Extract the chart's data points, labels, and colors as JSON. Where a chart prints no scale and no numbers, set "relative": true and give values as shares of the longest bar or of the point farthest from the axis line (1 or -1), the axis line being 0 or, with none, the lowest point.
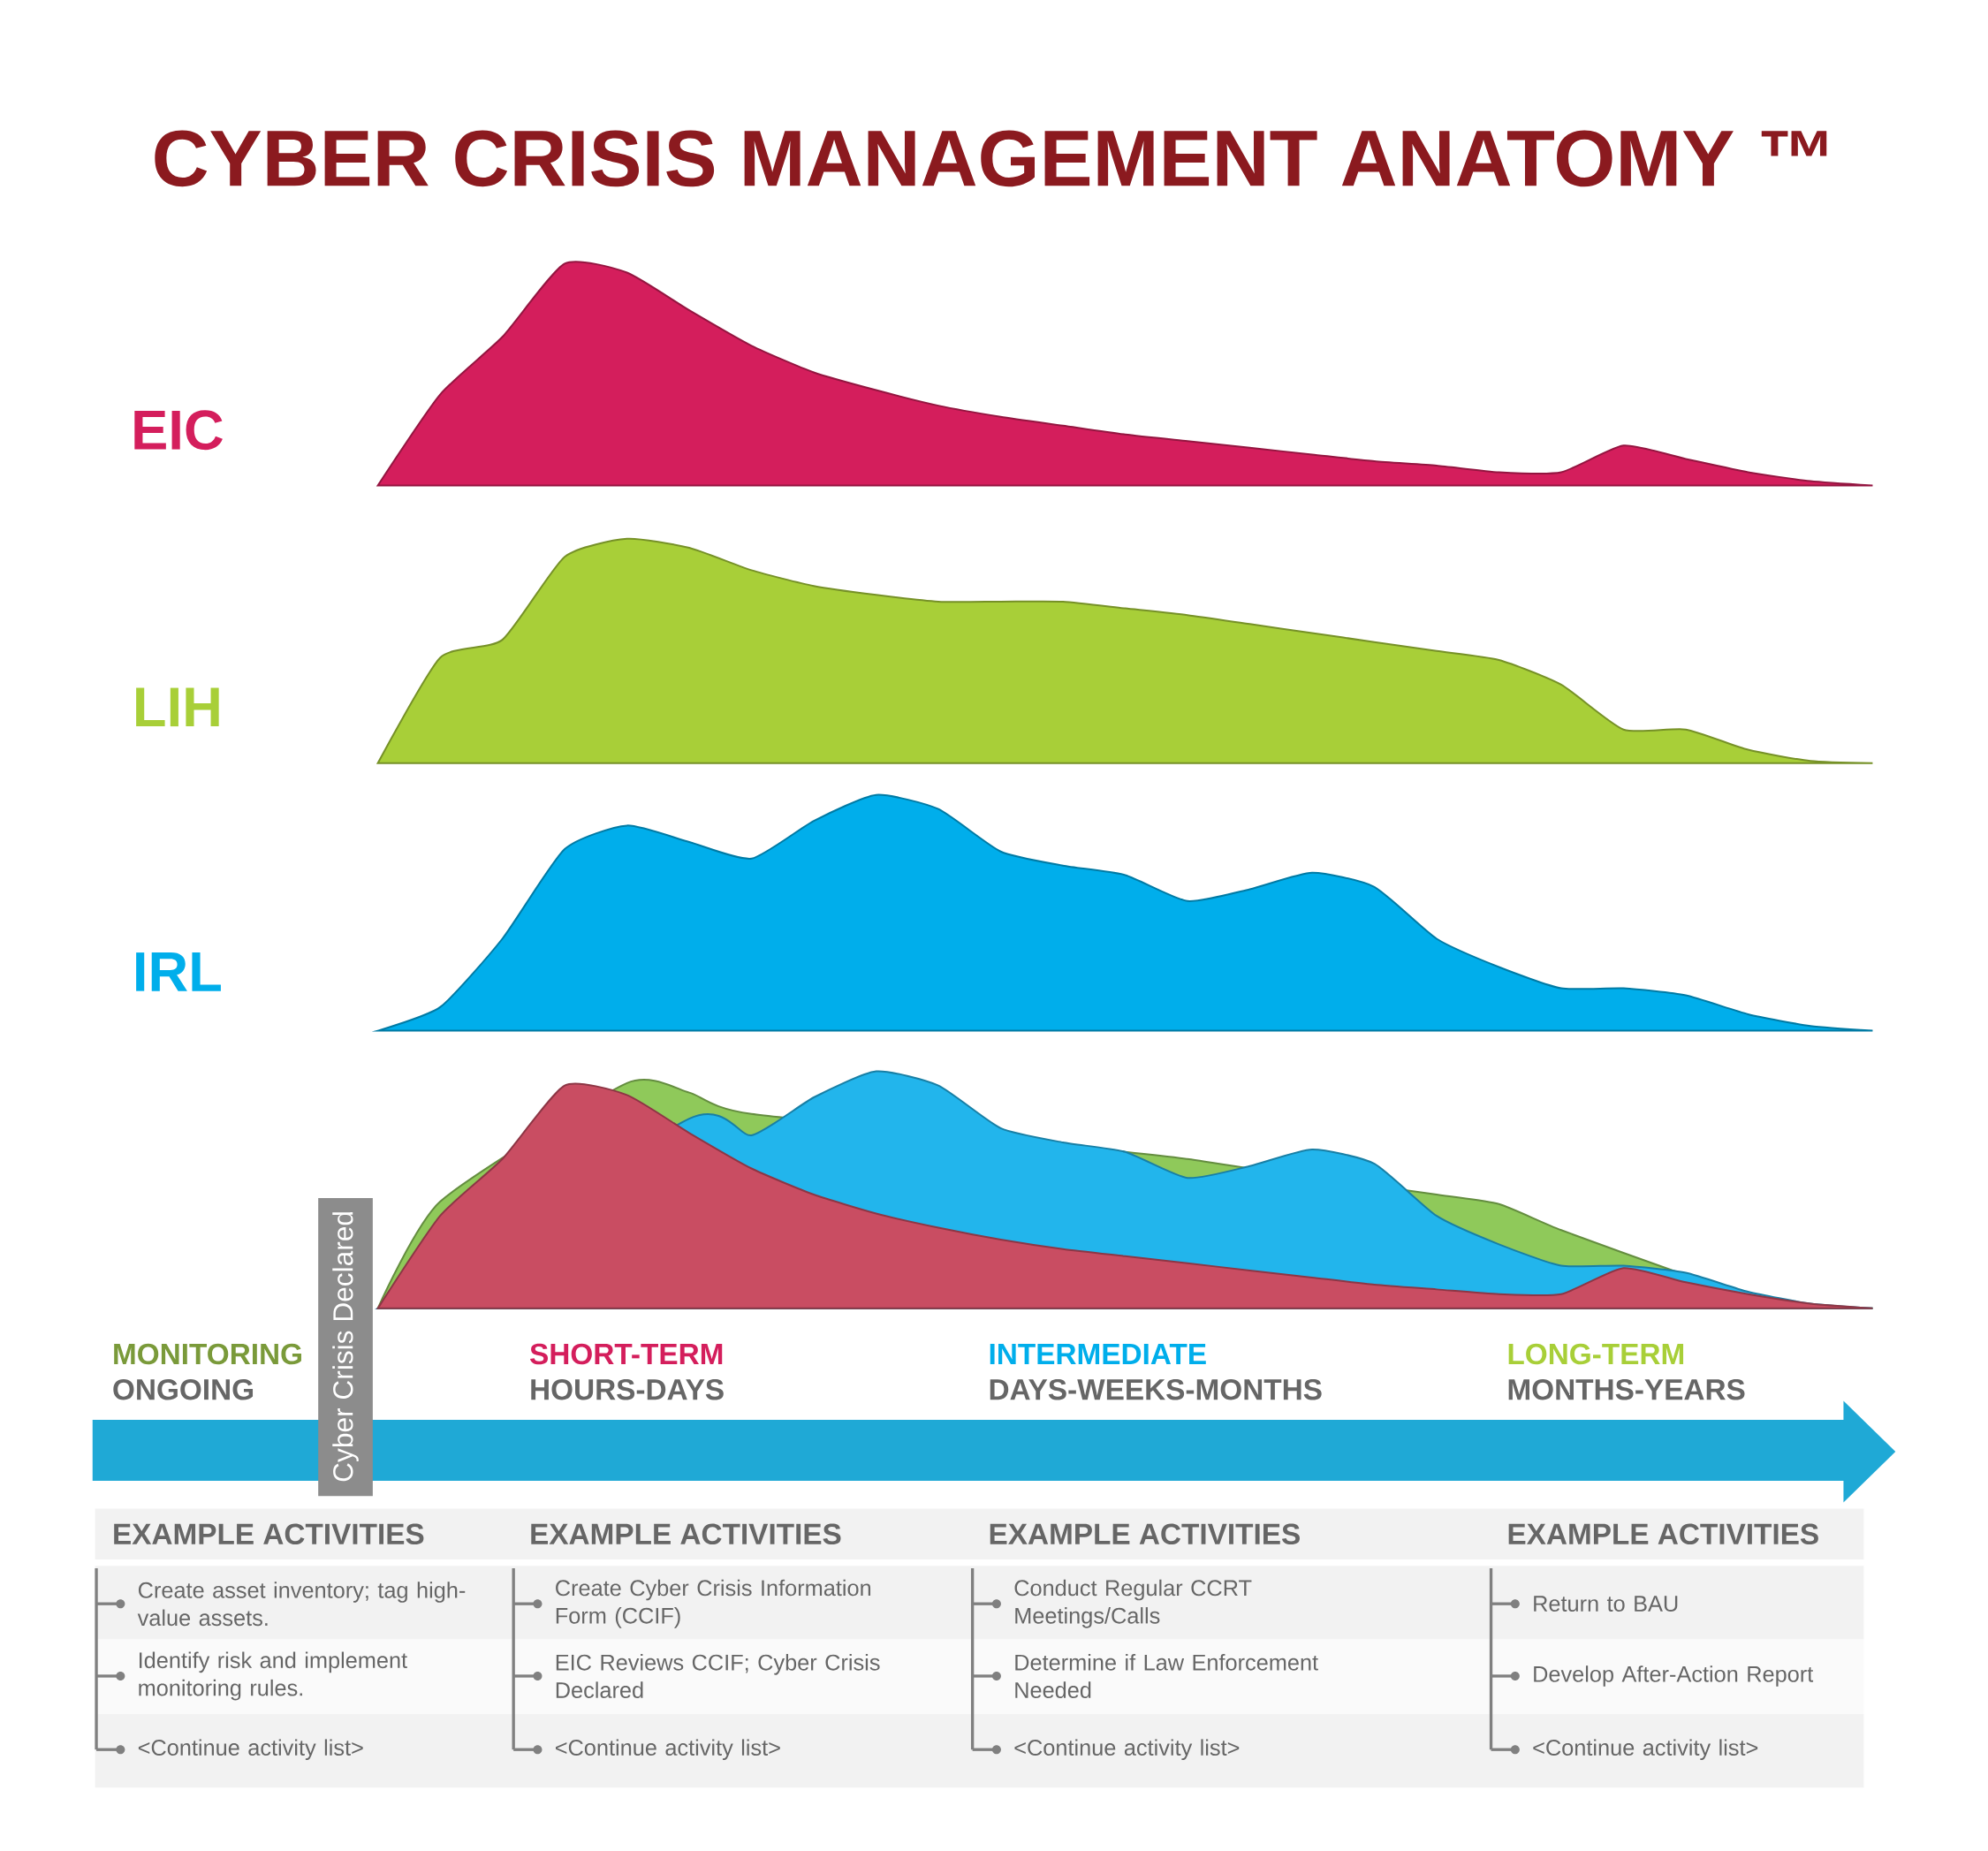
{
  "chart_data": [
    {
      "type": "area",
      "relative": true,
      "title": "CYBER CRISIS MANAGEMENT ANATOMY ™",
      "categories": [
        null,
        null,
        null,
        null,
        null,
        null,
        null,
        null,
        null,
        null,
        null,
        null,
        null,
        null,
        null,
        null,
        null,
        null,
        null,
        null,
        null,
        null,
        null,
        null,
        null
      ],
      "series": [
        {
          "name": "EIC",
          "color": "#d41e5c",
          "values": [
            0,
            0.41,
            0.67,
            1,
            0.96,
            0.79,
            0.63,
            0.51,
            0.43,
            0.36,
            0.31,
            0.27,
            0.23,
            0.2,
            0.17,
            0.14,
            0.11,
            0.09,
            0.06,
            0.06,
            0.18,
            0.12,
            0.06,
            0.02,
            0
          ]
        }
      ]
    },
    {
      "type": "area",
      "relative": true,
      "categories": [
        null,
        null,
        null,
        null,
        null,
        null,
        null,
        null,
        null,
        null,
        null,
        null,
        null,
        null,
        null,
        null,
        null,
        null,
        null,
        null,
        null,
        null,
        null,
        null,
        null
      ],
      "series": [
        {
          "name": "LIH",
          "color": "#a8cf38",
          "values": [
            0,
            0.47,
            0.55,
            0.92,
            1,
            0.96,
            0.86,
            0.79,
            0.75,
            0.72,
            0.72,
            0.72,
            0.69,
            0.66,
            0.62,
            0.58,
            0.54,
            0.5,
            0.46,
            0.35,
            0.15,
            0.15,
            0.06,
            0.01,
            0
          ]
        }
      ]
    },
    {
      "type": "area",
      "relative": true,
      "categories": [
        null,
        null,
        null,
        null,
        null,
        null,
        null,
        null,
        null,
        null,
        null,
        null,
        null,
        null,
        null,
        null,
        null,
        null,
        null,
        null,
        null,
        null,
        null,
        null,
        null
      ],
      "series": [
        {
          "name": "IRL",
          "color": "#00aeeb",
          "values": [
            0,
            0.1,
            0.39,
            0.77,
            0.87,
            0.8,
            0.73,
            0.89,
            1,
            0.94,
            0.76,
            0.7,
            0.66,
            0.55,
            0.6,
            0.67,
            0.61,
            0.39,
            0.27,
            0.18,
            0.18,
            0.15,
            0.07,
            0.02,
            0
          ]
        }
      ]
    },
    {
      "type": "area",
      "relative": true,
      "categories": [
        null,
        null,
        null,
        null,
        null,
        null,
        null,
        null,
        null,
        null,
        null,
        null,
        null,
        null,
        null,
        null,
        null,
        null,
        null,
        null,
        null,
        null,
        null,
        null,
        null
      ],
      "series": [
        {
          "color": "#8fc95a",
          "values": [
            0,
            0.45,
            null,
            null,
            0.95,
            0.91,
            0.82,
            null,
            null,
            null,
            null,
            null,
            0.66,
            0.63,
            0.59,
            null,
            null,
            0.48,
            0.44,
            0.33,
            null,
            0.14,
            0.06,
            0.01,
            0
          ]
        },
        {
          "color": "#22b5ec",
          "values": [
            0,
            null,
            null,
            null,
            null,
            0.8,
            0.73,
            0.89,
            1,
            0.94,
            0.76,
            0.7,
            0.66,
            0.55,
            0.6,
            0.67,
            0.61,
            0.39,
            0.27,
            0.18,
            0.18,
            0.15,
            0.07,
            0.02,
            0
          ]
        },
        {
          "color": "#c94d62",
          "values": [
            0,
            0.39,
            0.63,
            0.94,
            0.9,
            0.74,
            0.59,
            0.48,
            0.4,
            0.34,
            0.29,
            0.25,
            0.22,
            0.19,
            0.16,
            0.13,
            0.1,
            0.08,
            0.06,
            0.06,
            0.17,
            0.11,
            0.06,
            0.02,
            0
          ]
        }
      ]
    },
    {
      "type": "other",
      "annotations": [
        "Cyber Crisis Declared",
        "MONITORING",
        "ONGOING",
        "EXAMPLE ACTIVITIES",
        "Create asset inventory; tag high-value assets.",
        "Identify risk and implement monitoring rules.",
        "<Continue activity list>",
        "SHORT-TERM",
        "HOURS-DAYS",
        "EXAMPLE ACTIVITIES",
        "Create Cyber Crisis Information Form (CCIF)",
        "EIC Reviews CCIF; Cyber Crisis Declared",
        "<Continue activity list>",
        "INTERMEDIATE",
        "DAYS-WEEKS-MONTHS",
        "EXAMPLE ACTIVITIES",
        "Conduct Regular CCRT Meetings/Calls",
        "Determine if Law Enforcement Needed",
        "<Continue activity list>",
        "LONG-TERM",
        "MONTHS-YEARS",
        "EXAMPLE ACTIVITIES",
        "Return to BAU",
        "Develop After-Action Report",
        "<Continue activity list>"
      ]
    }
  ]
}
